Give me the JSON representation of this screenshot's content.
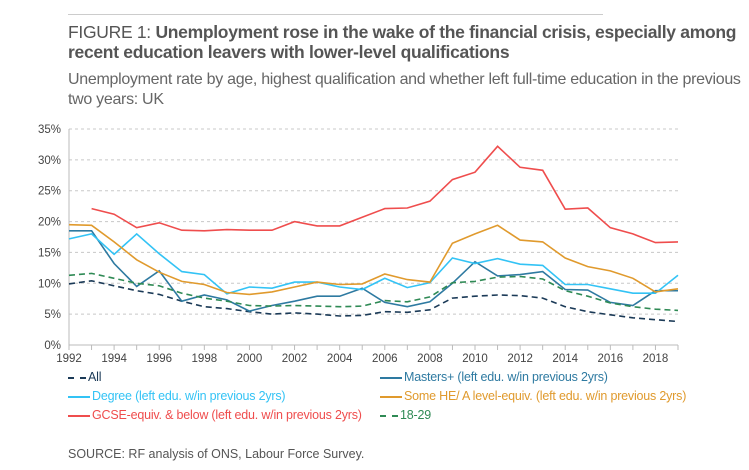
{
  "header": {
    "figure_label": "FIGURE 1: ",
    "title": "Unemployment rose in the wake of the financial crisis, especially among recent education leavers with lower-level qualifications",
    "subtitle": "Unemployment rate by age, highest qualification and whether left full-time education in the previous two years: UK"
  },
  "source": "SOURCE: RF analysis of ONS, Labour Force Survey.",
  "chart_data": {
    "type": "line",
    "xlim": [
      1992,
      2019
    ],
    "ylim": [
      0,
      35
    ],
    "grid": true,
    "legend_placement": "bottom",
    "x_ticks": [
      "1992",
      "1994",
      "1996",
      "1998",
      "2000",
      "2002",
      "2004",
      "2006",
      "2008",
      "2010",
      "2012",
      "2014",
      "2016",
      "2018"
    ],
    "y_ticks": [
      "0%",
      "5%",
      "10%",
      "15%",
      "20%",
      "25%",
      "30%",
      "35%"
    ],
    "x": [
      1992,
      1993,
      1994,
      1995,
      1996,
      1997,
      1998,
      1999,
      2000,
      2001,
      2002,
      2003,
      2004,
      2005,
      2006,
      2007,
      2008,
      2009,
      2010,
      2011,
      2012,
      2013,
      2014,
      2015,
      2016,
      2017,
      2018,
      2019
    ],
    "series": [
      {
        "name": "All",
        "color": "#1b3a57",
        "dashed": true,
        "values": [
          9.9,
          10.4,
          9.6,
          8.8,
          8.2,
          7.1,
          6.2,
          5.9,
          5.4,
          5.0,
          5.2,
          5.0,
          4.7,
          4.8,
          5.4,
          5.3,
          5.7,
          7.6,
          7.9,
          8.1,
          8.0,
          7.6,
          6.2,
          5.4,
          4.9,
          4.4,
          4.1,
          3.8
        ]
      },
      {
        "name": "Masters+  (left edu. w/in previous 2yrs)",
        "color": "#2e7aa1",
        "dashed": false,
        "values": [
          18.5,
          18.5,
          13.2,
          9.5,
          12.0,
          7.1,
          8.1,
          7.3,
          5.5,
          6.4,
          7.1,
          7.9,
          7.9,
          9.2,
          6.9,
          6.2,
          7.0,
          10.0,
          13.5,
          11.2,
          11.4,
          11.9,
          9.0,
          8.9,
          6.9,
          6.4,
          8.8,
          8.8
        ]
      },
      {
        "name": "Degree (left edu. w/in previous 2yrs)",
        "color": "#33c3f5",
        "dashed": false,
        "values": [
          17.2,
          18.0,
          14.7,
          18.0,
          14.8,
          11.9,
          11.4,
          8.3,
          9.4,
          9.2,
          10.2,
          10.2,
          9.4,
          9.0,
          10.8,
          9.3,
          10.1,
          14.1,
          13.2,
          14.0,
          13.1,
          12.9,
          9.8,
          9.8,
          9.1,
          8.4,
          8.4,
          11.3
        ]
      },
      {
        "name": "Some HE/ A level-equiv. (left edu. w/in previous 2yrs)",
        "color": "#e09a2d",
        "dashed": false,
        "values": [
          19.5,
          19.4,
          16.7,
          13.8,
          11.8,
          10.3,
          9.8,
          8.5,
          8.2,
          8.6,
          9.4,
          10.2,
          9.8,
          9.9,
          11.5,
          10.6,
          10.2,
          16.5,
          18.0,
          19.4,
          17.0,
          16.7,
          14.1,
          12.7,
          12.0,
          10.8,
          8.6,
          9.1
        ]
      },
      {
        "name": "GCSE-equiv. & below (left edu. w/in previous 2yrs)",
        "color": "#ef4d4d",
        "dashed": false,
        "values": [
          null,
          22.1,
          21.2,
          19.0,
          19.8,
          18.6,
          18.5,
          18.7,
          18.6,
          18.6,
          20.0,
          19.3,
          19.3,
          20.7,
          22.1,
          22.2,
          23.3,
          26.8,
          28.0,
          32.2,
          28.8,
          28.3,
          22.0,
          22.2,
          19.0,
          18.0,
          16.6,
          16.7
        ]
      },
      {
        "name": "18-29",
        "color": "#2f8a55",
        "dashed": true,
        "values": [
          11.3,
          11.6,
          10.8,
          10.0,
          9.6,
          8.4,
          7.6,
          7.1,
          6.4,
          6.3,
          6.4,
          6.3,
          6.2,
          6.3,
          7.2,
          7.0,
          7.8,
          10.1,
          10.3,
          11.0,
          11.1,
          10.7,
          8.8,
          7.9,
          6.8,
          6.2,
          5.8,
          5.6
        ]
      }
    ]
  }
}
